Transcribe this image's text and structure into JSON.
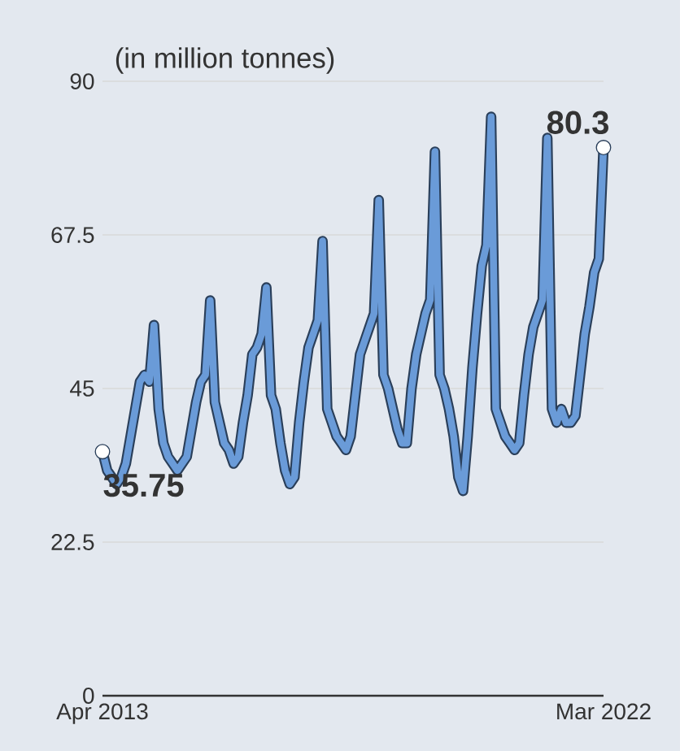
{
  "chart_data": {
    "type": "line",
    "ylabel": "(in million tonnes)",
    "x": [
      "2013-04",
      "2013-05",
      "2013-06",
      "2013-07",
      "2013-08",
      "2013-09",
      "2013-10",
      "2013-11",
      "2013-12",
      "2014-01",
      "2014-02",
      "2014-03",
      "2014-04",
      "2014-05",
      "2014-06",
      "2014-07",
      "2014-08",
      "2014-09",
      "2014-10",
      "2014-11",
      "2014-12",
      "2015-01",
      "2015-02",
      "2015-03",
      "2015-04",
      "2015-05",
      "2015-06",
      "2015-07",
      "2015-08",
      "2015-09",
      "2015-10",
      "2015-11",
      "2015-12",
      "2016-01",
      "2016-02",
      "2016-03",
      "2016-04",
      "2016-05",
      "2016-06",
      "2016-07",
      "2016-08",
      "2016-09",
      "2016-10",
      "2016-11",
      "2016-12",
      "2017-01",
      "2017-02",
      "2017-03",
      "2017-04",
      "2017-05",
      "2017-06",
      "2017-07",
      "2017-08",
      "2017-09",
      "2017-10",
      "2017-11",
      "2017-12",
      "2018-01",
      "2018-02",
      "2018-03",
      "2018-04",
      "2018-05",
      "2018-06",
      "2018-07",
      "2018-08",
      "2018-09",
      "2018-10",
      "2018-11",
      "2018-12",
      "2019-01",
      "2019-02",
      "2019-03",
      "2019-04",
      "2019-05",
      "2019-06",
      "2019-07",
      "2019-08",
      "2019-09",
      "2019-10",
      "2019-11",
      "2019-12",
      "2020-01",
      "2020-02",
      "2020-03",
      "2020-04",
      "2020-05",
      "2020-06",
      "2020-07",
      "2020-08",
      "2020-09",
      "2020-10",
      "2020-11",
      "2020-12",
      "2021-01",
      "2021-02",
      "2021-03",
      "2021-04",
      "2021-05",
      "2021-06",
      "2021-07",
      "2021-08",
      "2021-09",
      "2021-10",
      "2021-11",
      "2021-12",
      "2022-01",
      "2022-02",
      "2022-03"
    ],
    "series": [
      {
        "color": "#6a9bd8",
        "values": [
          35.75,
          33,
          32,
          31,
          32,
          34,
          38,
          42,
          46,
          47,
          46,
          54.3,
          42,
          37,
          35,
          34,
          33,
          34,
          35,
          39,
          43,
          46,
          47,
          57.9,
          43,
          40,
          37,
          36,
          34,
          35,
          40,
          44,
          50,
          51,
          53,
          59.8,
          44,
          42,
          37,
          33,
          31,
          32,
          40,
          46,
          51,
          53,
          55,
          66.6,
          42,
          40,
          38,
          37,
          36,
          38,
          44,
          50,
          52,
          54,
          56,
          72.6,
          47,
          45,
          42,
          39,
          37,
          37,
          45,
          50,
          53,
          56,
          58,
          79.7,
          47,
          45,
          42,
          38,
          32,
          30,
          38,
          48,
          56,
          63,
          66,
          84.8,
          42,
          40,
          38,
          37,
          36,
          37,
          44,
          50,
          54,
          56,
          58,
          81.7,
          42,
          40,
          42,
          40,
          40,
          41,
          47,
          53,
          57,
          62,
          64,
          80.3
        ]
      },
      {
        "type": "scatter",
        "color": "#ffffff",
        "x": [
          "2013-04",
          "2022-03"
        ],
        "values": [
          35.75,
          80.3
        ]
      }
    ],
    "xlim": [
      "2013-04",
      "2022-03"
    ],
    "xticks": [
      {
        "value": "2013-04",
        "label": "Apr 2013"
      },
      {
        "value": "2022-03",
        "label": "Mar 2022"
      }
    ],
    "ylim": [
      0,
      90
    ],
    "yticks": [
      0,
      22.5,
      45,
      67.5,
      90
    ],
    "grid": "y",
    "annotations": [
      {
        "text": "35.75",
        "x": "2013-04",
        "y": 35.75
      },
      {
        "text": "80.3",
        "x": "2022-03",
        "y": 80.3
      }
    ]
  }
}
